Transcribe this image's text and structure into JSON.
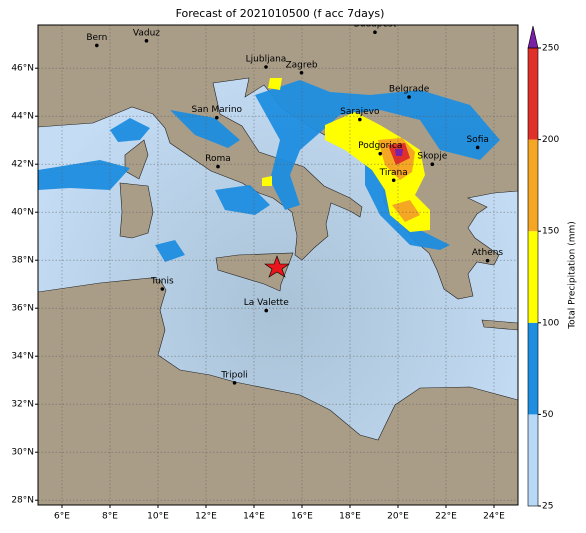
{
  "title": "Forecast of 2021010500 (f acc 7days)",
  "map": {
    "xlim": [
      5,
      25
    ],
    "ylim": [
      27.8,
      47.8
    ],
    "xticks": [
      {
        "value": 6,
        "label": "6°E"
      },
      {
        "value": 8,
        "label": "8°E"
      },
      {
        "value": 10,
        "label": "10°E"
      },
      {
        "value": 12,
        "label": "12°E"
      },
      {
        "value": 14,
        "label": "14°E"
      },
      {
        "value": 16,
        "label": "16°E"
      },
      {
        "value": 18,
        "label": "18°E"
      },
      {
        "value": 20,
        "label": "20°E"
      },
      {
        "value": 22,
        "label": "22°E"
      },
      {
        "value": 24,
        "label": "24°E"
      }
    ],
    "yticks": [
      {
        "value": 28,
        "label": "28°N"
      },
      {
        "value": 30,
        "label": "30°N"
      },
      {
        "value": 32,
        "label": "32°N"
      },
      {
        "value": 34,
        "label": "34°N"
      },
      {
        "value": 36,
        "label": "36°N"
      },
      {
        "value": 38,
        "label": "38°N"
      },
      {
        "value": 40,
        "label": "40°N"
      },
      {
        "value": 42,
        "label": "42°N"
      },
      {
        "value": 44,
        "label": "44°N"
      },
      {
        "value": 46,
        "label": "46°N"
      }
    ],
    "cities": [
      "Bern",
      "Vaduz",
      "Budapest",
      "Ljubljana",
      "Zagreb",
      "Belgrade",
      "Sarajevo",
      "San Marino",
      "Sofia",
      "Podgorica",
      "Skopje",
      "Roma",
      "Tirana",
      "Athens",
      "Tunis",
      "La Valette",
      "Tripoli"
    ]
  },
  "colorbar": {
    "label": "Total Precipitation (mm)",
    "ticks": [
      25,
      50,
      100,
      150,
      200,
      250
    ],
    "colors": [
      "#b8d8f8",
      "#1e8ee0",
      "#ffff00",
      "#f5a623",
      "#e0302a"
    ],
    "extend_color": "#7a1fa8"
  }
}
